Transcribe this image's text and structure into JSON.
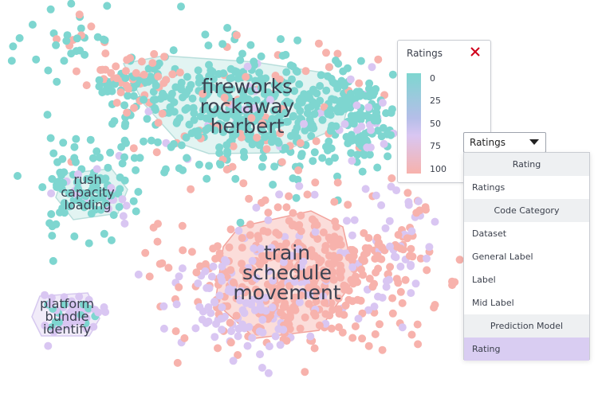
{
  "clusters": [
    {
      "words": [
        "fireworks",
        "rockaway",
        "herbert"
      ]
    },
    {
      "words": [
        "rush",
        "capacity",
        "loading"
      ]
    },
    {
      "words": [
        "train",
        "schedule",
        "movement"
      ]
    },
    {
      "words": [
        "platform",
        "bundle",
        "identify"
      ]
    }
  ],
  "legend": {
    "title": "Ratings",
    "close_icon": "close-x-icon",
    "ticks": [
      "0",
      "25",
      "50",
      "75",
      "100"
    ],
    "colors": {
      "low": "#7ed6d0",
      "mid": "#d9c6f2",
      "high": "#f7b2ac"
    }
  },
  "dropdown": {
    "selected": "Ratings",
    "menu": {
      "groups": [
        {
          "header": "Rating",
          "items": [
            "Ratings"
          ]
        },
        {
          "header": "Code Category",
          "items": [
            "Dataset",
            "General Label",
            "Label",
            "Mid Label"
          ]
        },
        {
          "header": "Prediction Model",
          "items": [
            "Rating"
          ]
        }
      ],
      "selected_item": "Rating"
    }
  },
  "colors": {
    "teal": "#7ed6d0",
    "salmon": "#f7b2ac",
    "lavender": "#d9c6f2",
    "hull_teal": "#d6efed",
    "hull_salmon": "#f9cfca",
    "hull_lavender": "#ebe2f7",
    "selected_row": "#d9cdf2",
    "close_red": "#d0021b"
  }
}
